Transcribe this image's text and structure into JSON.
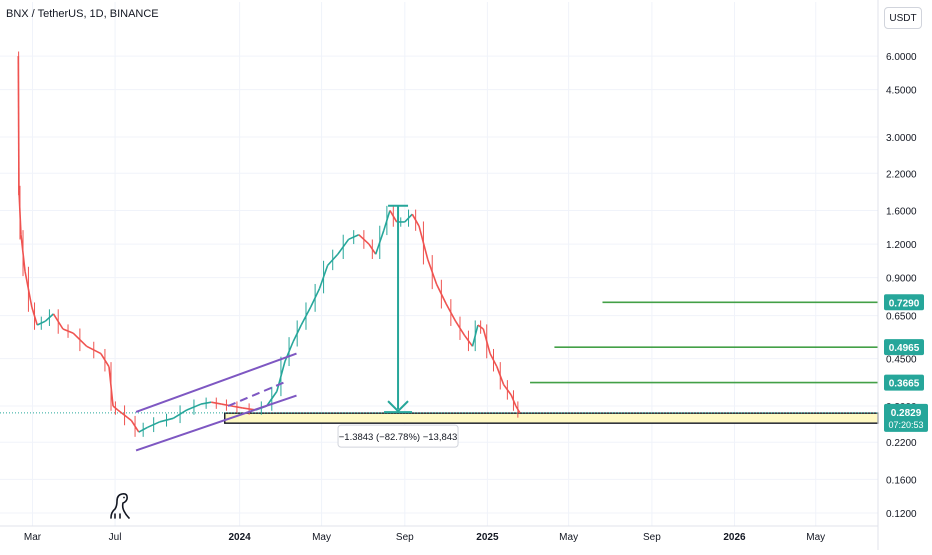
{
  "header": {
    "symbol_title": "BNX / TetherUS, 1D, BINANCE",
    "currency_button": "USDT"
  },
  "colors": {
    "up": "#26a69a",
    "down": "#ef5350",
    "channel": "#7e57c2",
    "target_line": "#43a047",
    "price_badge": "#26a69a",
    "measure": "#26a69a",
    "support_fill": "#fff9c4"
  },
  "chart_data": {
    "type": "line",
    "title": "BNX / TetherUS, 1D, BINANCE",
    "scale": "log",
    "ylim": [
      0.115,
      7.5
    ],
    "y_ticks": [
      {
        "value": 6.0,
        "label": "6.0000"
      },
      {
        "value": 4.5,
        "label": "4.5000"
      },
      {
        "value": 3.0,
        "label": "3.0000"
      },
      {
        "value": 2.2,
        "label": "2.2000"
      },
      {
        "value": 1.6,
        "label": "1.6000"
      },
      {
        "value": 1.2,
        "label": "1.2000"
      },
      {
        "value": 0.9,
        "label": "0.9000"
      },
      {
        "value": 0.65,
        "label": "0.6500"
      },
      {
        "value": 0.45,
        "label": "0.4500"
      },
      {
        "value": 0.3,
        "label": "0.3000"
      },
      {
        "value": 0.22,
        "label": "0.2200"
      },
      {
        "value": 0.16,
        "label": "0.1600"
      },
      {
        "value": 0.12,
        "label": "0.1200"
      }
    ],
    "x_ticks": [
      {
        "date": "2023-03-01",
        "label": "Mar",
        "bold": false
      },
      {
        "date": "2023-07-01",
        "label": "Jul",
        "bold": false
      },
      {
        "date": "2024-01-01",
        "label": "2024",
        "bold": true
      },
      {
        "date": "2024-05-01",
        "label": "May",
        "bold": false
      },
      {
        "date": "2024-09-01",
        "label": "Sep",
        "bold": false
      },
      {
        "date": "2025-01-01",
        "label": "2025",
        "bold": true
      },
      {
        "date": "2025-05-01",
        "label": "May",
        "bold": false
      },
      {
        "date": "2025-09-01",
        "label": "Sep",
        "bold": false
      },
      {
        "date": "2026-01-01",
        "label": "2026",
        "bold": true
      },
      {
        "date": "2026-05-01",
        "label": "May",
        "bold": false
      }
    ],
    "x_range": [
      "2023-01-12",
      "2026-08-01"
    ],
    "series": [
      {
        "points": [
          [
            "2023-02-08",
            6.0
          ],
          [
            "2023-02-09",
            1.9
          ],
          [
            "2023-02-12",
            1.3
          ],
          [
            "2023-02-18",
            0.95
          ],
          [
            "2023-02-28",
            0.7
          ],
          [
            "2023-03-08",
            0.6
          ],
          [
            "2023-03-20",
            0.62
          ],
          [
            "2023-04-01",
            0.66
          ],
          [
            "2023-04-15",
            0.58
          ],
          [
            "2023-04-30",
            0.56
          ],
          [
            "2023-05-20",
            0.5
          ],
          [
            "2023-06-10",
            0.47
          ],
          [
            "2023-06-22",
            0.42
          ],
          [
            "2023-06-28",
            0.3
          ],
          [
            "2023-07-05",
            0.29
          ],
          [
            "2023-07-25",
            0.265
          ],
          [
            "2023-08-05",
            0.24
          ],
          [
            "2023-08-18",
            0.25
          ],
          [
            "2023-09-05",
            0.262
          ],
          [
            "2023-09-25",
            0.27
          ],
          [
            "2023-10-15",
            0.29
          ],
          [
            "2023-11-05",
            0.305
          ],
          [
            "2023-11-20",
            0.31
          ],
          [
            "2023-12-05",
            0.305
          ],
          [
            "2023-12-20",
            0.3
          ],
          [
            "2024-01-05",
            0.295
          ],
          [
            "2024-01-25",
            0.29
          ],
          [
            "2024-02-10",
            0.3
          ],
          [
            "2024-02-25",
            0.34
          ],
          [
            "2024-03-08",
            0.44
          ],
          [
            "2024-03-20",
            0.52
          ],
          [
            "2024-04-01",
            0.6
          ],
          [
            "2024-04-15",
            0.7
          ],
          [
            "2024-04-28",
            0.82
          ],
          [
            "2024-05-10",
            1.0
          ],
          [
            "2024-05-25",
            1.1
          ],
          [
            "2024-06-10",
            1.25
          ],
          [
            "2024-06-25",
            1.3
          ],
          [
            "2024-07-10",
            1.2
          ],
          [
            "2024-07-20",
            1.1
          ],
          [
            "2024-08-01",
            1.35
          ],
          [
            "2024-08-10",
            1.6
          ],
          [
            "2024-08-20",
            1.45
          ],
          [
            "2024-09-01",
            1.45
          ],
          [
            "2024-09-12",
            1.55
          ],
          [
            "2024-09-22",
            1.4
          ],
          [
            "2024-10-05",
            1.05
          ],
          [
            "2024-10-18",
            0.85
          ],
          [
            "2024-11-01",
            0.72
          ],
          [
            "2024-11-15",
            0.62
          ],
          [
            "2024-11-28",
            0.55
          ],
          [
            "2024-12-10",
            0.5
          ],
          [
            "2024-12-18",
            0.6
          ],
          [
            "2024-12-26",
            0.58
          ],
          [
            "2025-01-05",
            0.47
          ],
          [
            "2025-01-15",
            0.42
          ],
          [
            "2025-01-25",
            0.36
          ],
          [
            "2025-02-05",
            0.33
          ],
          [
            "2025-02-12",
            0.3
          ],
          [
            "2025-02-18",
            0.2829
          ]
        ]
      }
    ],
    "last_price": {
      "value": 0.2829,
      "label": "0.2829",
      "countdown": "07:20:53"
    },
    "target_levels": [
      {
        "value": 0.729,
        "label": "0.7290",
        "start": "2025-06-20"
      },
      {
        "value": 0.4965,
        "label": "0.4965",
        "start": "2025-04-10"
      },
      {
        "value": 0.3665,
        "label": "0.3665",
        "start": "2025-03-05"
      }
    ],
    "measure": {
      "from": {
        "date": "2024-08-22",
        "value": 1.6665
      },
      "to": {
        "date": "2024-08-22",
        "value": 0.2822
      },
      "label": "−1.3843 (−82.78%) −13,843"
    },
    "support_zone": {
      "from": "2023-12-10",
      "to": "2026-08-01",
      "low": 0.259,
      "high": 0.2822
    },
    "channel": {
      "upper": [
        [
          "2023-08-01",
          0.285
        ],
        [
          "2024-03-25",
          0.47
        ]
      ],
      "middle": [
        [
          "2023-12-15",
          0.3
        ],
        [
          "2024-03-10",
          0.37
        ]
      ],
      "lower": [
        [
          "2023-08-01",
          0.205
        ],
        [
          "2024-03-25",
          0.328
        ]
      ]
    }
  }
}
